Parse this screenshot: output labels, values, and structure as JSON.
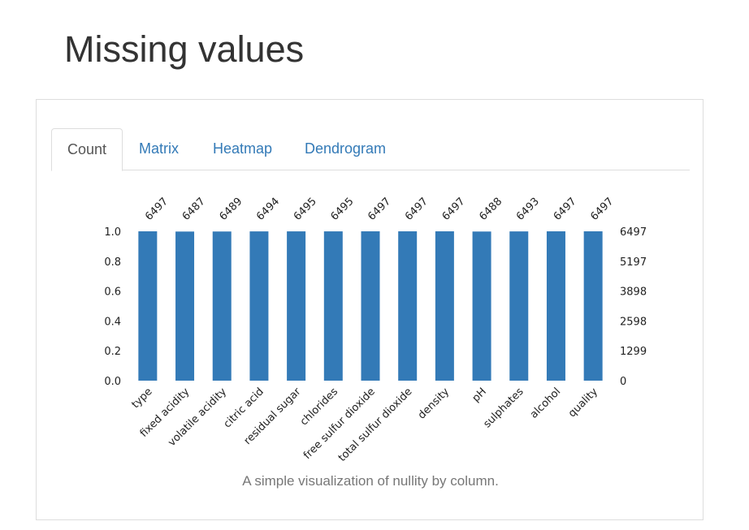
{
  "page": {
    "title": "Missing values"
  },
  "tabs": [
    {
      "label": "Count",
      "active": true
    },
    {
      "label": "Matrix",
      "active": false
    },
    {
      "label": "Heatmap",
      "active": false
    },
    {
      "label": "Dendrogram",
      "active": false
    }
  ],
  "caption": "A simple visualization of nullity by column.",
  "colors": {
    "bar": "#337ab7",
    "link": "#337ab7",
    "active_tab_text": "#555555"
  },
  "chart_data": {
    "type": "bar",
    "categories": [
      "type",
      "fixed acidity",
      "volatile acidity",
      "citric acid",
      "residual sugar",
      "chlorides",
      "free sulfur dioxide",
      "total sulfur dioxide",
      "density",
      "pH",
      "sulphates",
      "alcohol",
      "quality"
    ],
    "counts": [
      6497,
      6487,
      6489,
      6494,
      6495,
      6495,
      6497,
      6497,
      6497,
      6488,
      6493,
      6497,
      6497
    ],
    "total": 6497,
    "ylim": [
      0,
      1.0
    ],
    "left_ticks": [
      "0.0",
      "0.2",
      "0.4",
      "0.6",
      "0.8",
      "1.0"
    ],
    "left_tick_values": [
      0,
      0.2,
      0.4,
      0.6,
      0.8,
      1.0
    ],
    "right_ticks": [
      "0",
      "1299",
      "2598",
      "3898",
      "5197",
      "6497"
    ],
    "grid": false
  }
}
